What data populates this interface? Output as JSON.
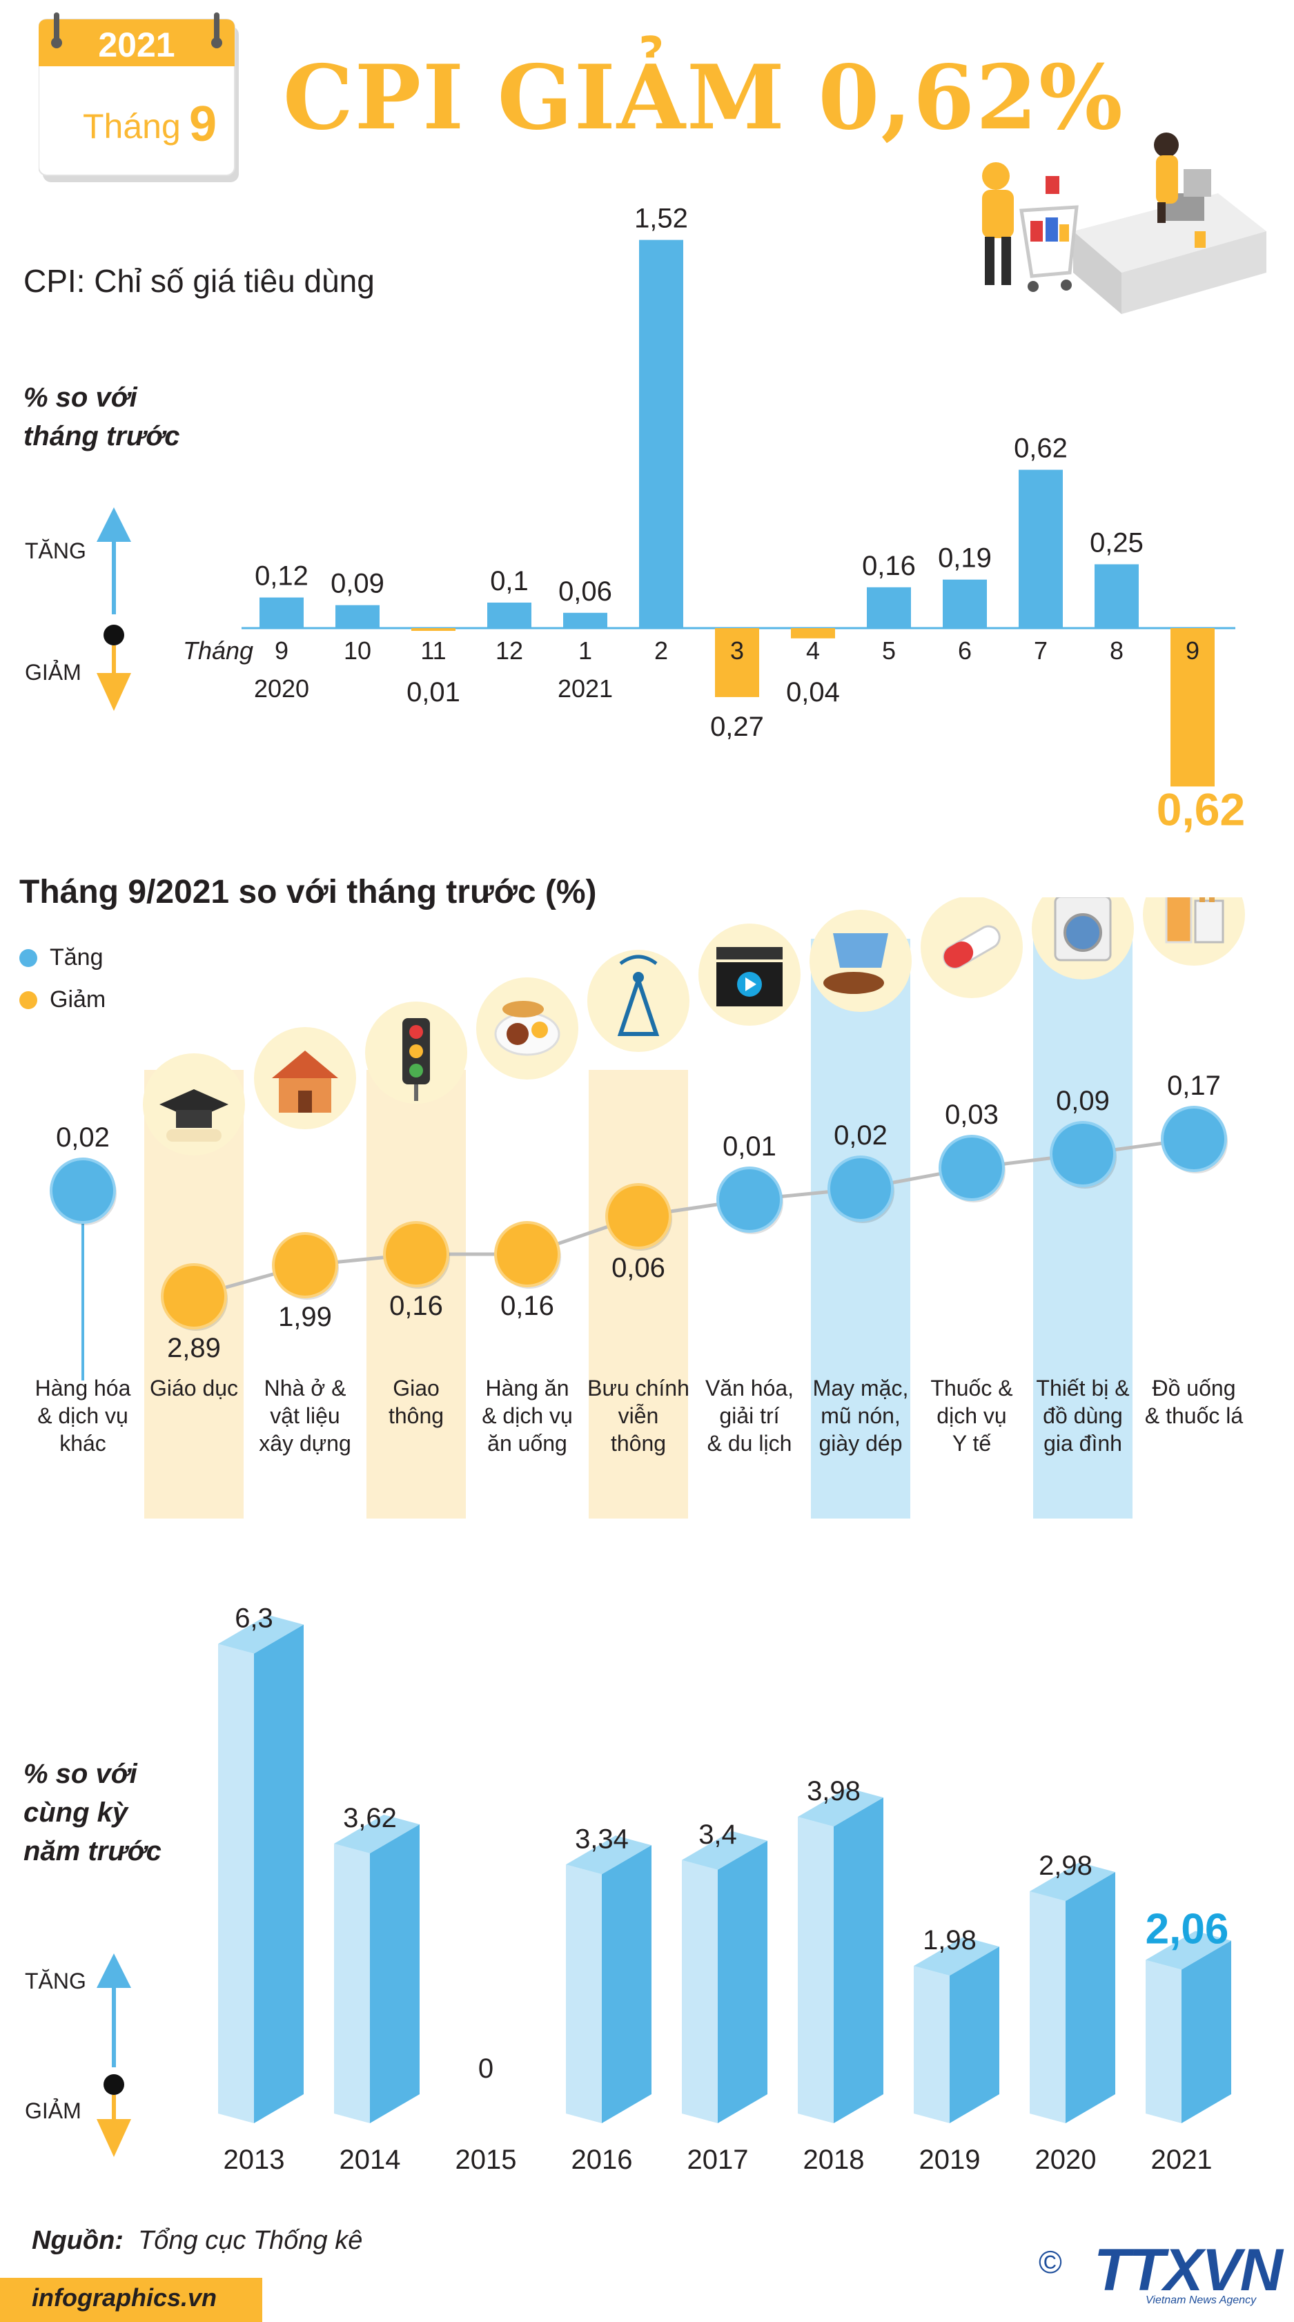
{
  "header": {
    "year": "2021",
    "month_label": "Tháng",
    "month_value": "9",
    "title": "CPI GIẢM 0,62%",
    "subtitle": "CPI: Chỉ số giá tiêu dùng"
  },
  "colors": {
    "accent": "#fbb832",
    "blue": "#56b5e6",
    "light_blue": "#c8e8f8",
    "cream": "#fdefcf",
    "highlight": "#1aa5e0"
  },
  "chart_data": [
    {
      "type": "bar",
      "ylabel_lines": [
        "% so với",
        "tháng trước"
      ],
      "tang_label": "TĂNG",
      "giam_label": "GIẢM",
      "x_prefix": "Tháng",
      "categories": [
        "9",
        "10",
        "11",
        "12",
        "1",
        "2",
        "3",
        "4",
        "5",
        "6",
        "7",
        "8",
        "9"
      ],
      "year_labels": [
        {
          "index": 0,
          "text": "2020"
        },
        {
          "index": 4,
          "text": "2021"
        }
      ],
      "values": [
        0.12,
        0.09,
        -0.01,
        0.1,
        0.06,
        1.52,
        -0.27,
        -0.04,
        0.16,
        0.19,
        0.62,
        0.25,
        -0.62
      ],
      "value_labels": [
        "0,12",
        "0,09",
        "0,01",
        "0,1",
        "0,06",
        "1,52",
        "0,27",
        "0,04",
        "0,16",
        "0,19",
        "0,62",
        "0,25",
        "0,62"
      ]
    },
    {
      "type": "scatter",
      "title": "Tháng 9/2021 so với tháng trước (%)",
      "legend": [
        {
          "label": "Tăng",
          "color": "#56b5e6"
        },
        {
          "label": "Giảm",
          "color": "#fbb832"
        }
      ],
      "categories": [
        "Hàng hóa & dịch vụ khác",
        "Giáo dục",
        "Nhà ở & vật liệu xây dựng",
        "Giao thông",
        "Hàng ăn & dịch vụ ăn uống",
        "Bưu chính viễn thông",
        "Văn hóa, giải trí & du lịch",
        "May mặc, mũ nón, giày dép",
        "Thuốc & dịch vụ Y tế",
        "Thiết bị & đồ dùng gia đình",
        "Đồ uống & thuốc lá"
      ],
      "category_lines": [
        [
          "Hàng hóa",
          "& dịch vụ",
          "khác"
        ],
        [
          "Giáo dục"
        ],
        [
          "Nhà ở &",
          "vật liệu",
          "xây dựng"
        ],
        [
          "Giao",
          "thông"
        ],
        [
          "Hàng ăn",
          "& dịch vụ",
          "ăn uống"
        ],
        [
          "Bưu chính",
          "viễn",
          "thông"
        ],
        [
          "Văn hóa,",
          "giải trí",
          "& du lịch"
        ],
        [
          "May mặc,",
          "mũ nón,",
          "giày dép"
        ],
        [
          "Thuốc &",
          "dịch vụ",
          "Y tế"
        ],
        [
          "Thiết bị &",
          "đồ dùng",
          "gia đình"
        ],
        [
          "Đồ uống",
          "& thuốc lá"
        ]
      ],
      "values": [
        0.02,
        -2.89,
        -1.99,
        -0.16,
        -0.16,
        -0.06,
        0.01,
        0.02,
        0.03,
        0.09,
        0.17
      ],
      "value_labels": [
        "0,02",
        "2,89",
        "1,99",
        "0,16",
        "0,16",
        "0,06",
        "0,01",
        "0,02",
        "0,03",
        "0,09",
        "0,17"
      ],
      "icons": [
        "",
        "graduation-cap-icon",
        "house-icon",
        "traffic-light-icon",
        "food-plate-icon",
        "radio-tower-icon",
        "film-clapper-icon",
        "clothes-shoes-icon",
        "pill-icon",
        "washing-machine-icon",
        "drinks-cigarettes-icon"
      ]
    },
    {
      "type": "bar",
      "ylabel_lines": [
        "% so với",
        "cùng kỳ",
        "năm trước"
      ],
      "tang_label": "TĂNG",
      "giam_label": "GIẢM",
      "categories": [
        "2013",
        "2014",
        "2015",
        "2016",
        "2017",
        "2018",
        "2019",
        "2020",
        "2021"
      ],
      "values": [
        6.3,
        3.62,
        0,
        3.34,
        3.4,
        3.98,
        1.98,
        2.98,
        2.06
      ],
      "value_labels": [
        "6,3",
        "3,62",
        "0",
        "3,34",
        "3,4",
        "3,98",
        "1,98",
        "2,98",
        "2,06"
      ]
    }
  ],
  "footer": {
    "source_label": "Nguồn:",
    "source_value": "Tổng cục Thống kê",
    "site": "infographics.vn",
    "copyright": "©",
    "logo": "TTXVN",
    "logo_sub": "Vietnam News Agency"
  }
}
